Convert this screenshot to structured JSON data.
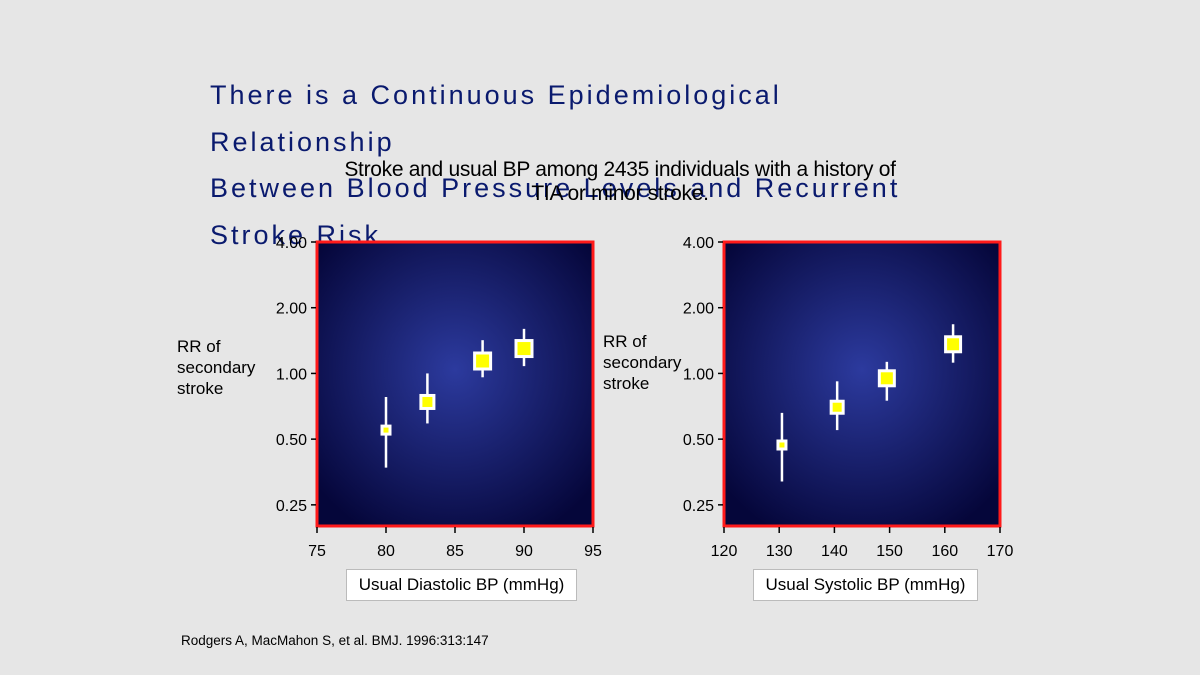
{
  "slide": {
    "title_lines": [
      "There is a Continuous Epidemiological",
      "Relationship",
      "Between Blood Pressure Levels and Recurrent",
      "Stroke Risk"
    ],
    "subtitle": "Stroke and usual BP among 2435 individuals with a history of TIA or minor stroke.",
    "citation": "Rodgers A, MacMahon S, et al. BMJ. 1996:313:147"
  },
  "colors": {
    "title": "#0a1a6e",
    "plot_center": "#2c3a9e",
    "plot_edge": "#05063a",
    "plot_border": "#ff1a1a",
    "marker": "#ffff00",
    "marker_outline": "#ffffff",
    "whisker": "#ffffff"
  },
  "chart_data": [
    {
      "type": "scatter",
      "xlabel": "Usual Diastolic BP (mmHg)",
      "ylabel": "RR of secondary stroke",
      "y_scale": "log",
      "xlim": [
        75,
        95
      ],
      "ylim": [
        0.2,
        4.0
      ],
      "x_ticks": [
        75,
        80,
        85,
        90,
        95
      ],
      "x_tick_labels": [
        "75",
        "80",
        "85",
        "90",
        "95"
      ],
      "y_ticks": [
        0.25,
        0.5,
        1.0,
        2.0,
        4.0
      ],
      "y_tick_labels": [
        "0.25",
        "0.50",
        "1.00",
        "2.00",
        "4.00"
      ],
      "points": [
        {
          "x": 80,
          "y": 0.55,
          "low": 0.37,
          "high": 0.78
        },
        {
          "x": 83,
          "y": 0.74,
          "low": 0.59,
          "high": 1.0
        },
        {
          "x": 87,
          "y": 1.14,
          "low": 0.96,
          "high": 1.42
        },
        {
          "x": 90,
          "y": 1.3,
          "low": 1.08,
          "high": 1.6
        }
      ]
    },
    {
      "type": "scatter",
      "xlabel": "Usual Systolic BP (mmHg)",
      "ylabel": "RR of secondary stroke",
      "y_scale": "log",
      "xlim": [
        120,
        170
      ],
      "ylim": [
        0.2,
        4.0
      ],
      "x_ticks": [
        120,
        130,
        140,
        150,
        160,
        170
      ],
      "x_tick_labels": [
        "120",
        "130",
        "140",
        "150",
        "160",
        "170"
      ],
      "y_ticks": [
        0.25,
        0.5,
        1.0,
        2.0,
        4.0
      ],
      "y_tick_labels": [
        "0.25",
        "0.50",
        "1.00",
        "2.00",
        "4.00"
      ],
      "points": [
        {
          "x": 130.5,
          "y": 0.47,
          "low": 0.32,
          "high": 0.66
        },
        {
          "x": 140.5,
          "y": 0.7,
          "low": 0.55,
          "high": 0.92
        },
        {
          "x": 149.5,
          "y": 0.95,
          "low": 0.75,
          "high": 1.13
        },
        {
          "x": 161.5,
          "y": 1.36,
          "low": 1.12,
          "high": 1.68
        }
      ]
    }
  ]
}
